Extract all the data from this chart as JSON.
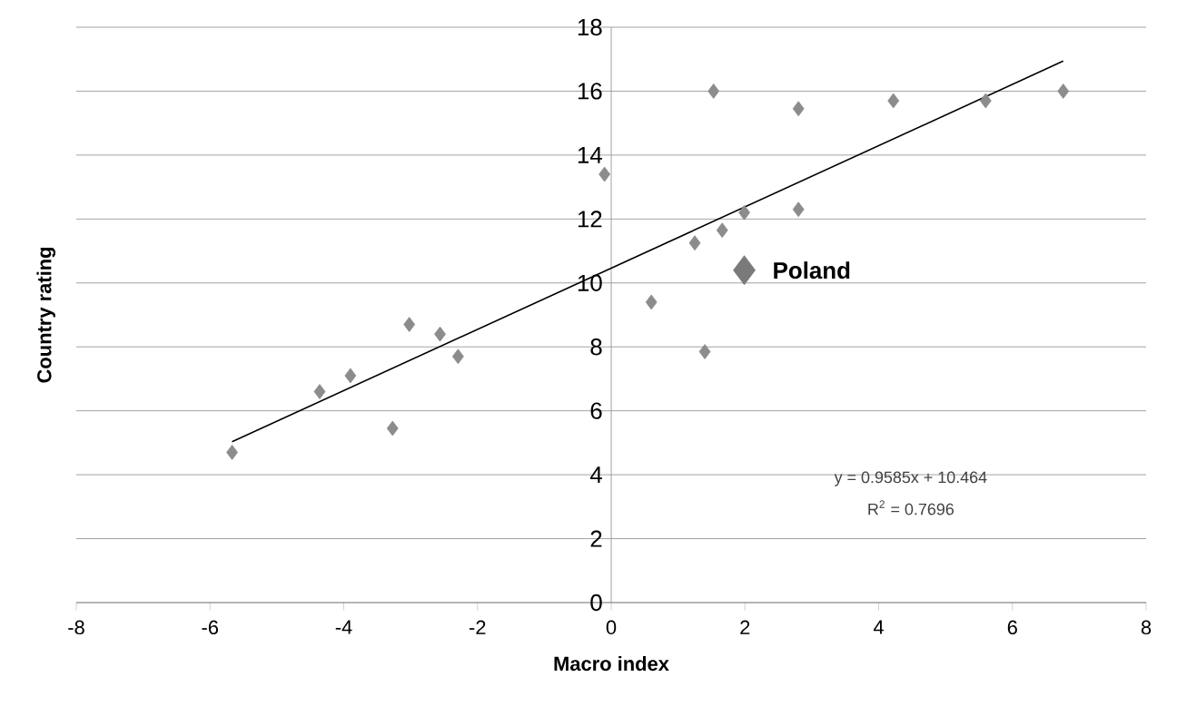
{
  "chart_data": {
    "type": "scatter",
    "xlabel": "Macro index",
    "ylabel": "Country rating",
    "xlim": [
      -8,
      8
    ],
    "ylim": [
      0,
      18
    ],
    "xticks": [
      -8,
      -6,
      -4,
      -2,
      0,
      2,
      4,
      6,
      8
    ],
    "yticks": [
      0,
      2,
      4,
      6,
      8,
      10,
      12,
      14,
      16,
      18
    ],
    "grid": "y",
    "marker": "diamond",
    "series": [
      {
        "color": "#8c8c8c",
        "x": [
          -5.67,
          -4.36,
          -3.9,
          -3.27,
          -3.02,
          -2.56,
          -2.29,
          -0.1,
          0.6,
          1.53,
          1.4,
          1.25,
          1.66,
          1.99,
          2.8,
          2.8,
          4.22,
          5.6,
          6.76
        ],
        "values": [
          4.7,
          6.6,
          7.1,
          5.45,
          8.7,
          8.4,
          7.7,
          13.4,
          9.4,
          16.0,
          7.85,
          11.25,
          11.65,
          12.2,
          12.3,
          15.45,
          15.7,
          15.7,
          16.0
        ]
      },
      {
        "name": "Poland",
        "color": "#7a7a7a",
        "x": [
          1.99
        ],
        "values": [
          10.4
        ]
      },
      {
        "type": "line",
        "marker": "none",
        "color": "#000000",
        "x": [
          -5.67,
          6.76
        ],
        "values": [
          5.03,
          16.94
        ]
      }
    ],
    "annotations": [
      "y = 0.9585x + 10.464",
      "R$^{2}$ = 0.7696"
    ]
  }
}
